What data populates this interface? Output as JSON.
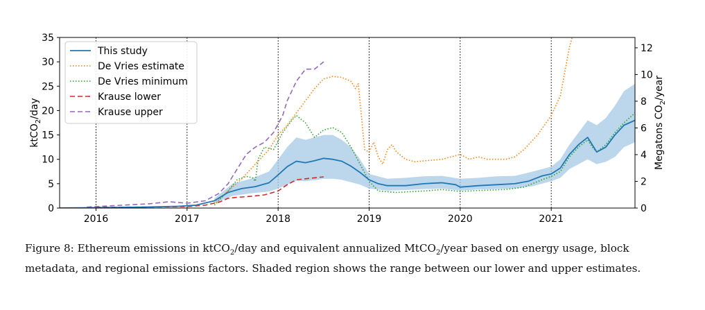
{
  "chart_data": {
    "type": "line",
    "title": "",
    "xlabel": "",
    "ylabel_left": "ktCO2/day",
    "ylabel_right": "Megatons CO2/year",
    "xlim": [
      2015.6,
      2021.92
    ],
    "ylim_left": [
      0,
      35
    ],
    "ylim_right": [
      0,
      12.775
    ],
    "x_ticks": [
      2016,
      2017,
      2018,
      2019,
      2020,
      2021
    ],
    "x_tick_labels": [
      "2016",
      "2017",
      "2018",
      "2019",
      "2020",
      "2021"
    ],
    "y_ticks_left": [
      0,
      5,
      10,
      15,
      20,
      25,
      30,
      35
    ],
    "y_ticks_right": [
      0,
      2,
      4,
      6,
      8,
      10,
      12
    ],
    "vertical_lines": [
      2016,
      2017,
      2018,
      2019,
      2020,
      2021
    ],
    "legend_position": "top-left",
    "series": [
      {
        "name": "This study",
        "style": "solid",
        "color": "#1f77b4",
        "points": [
          [
            2015.6,
            0.02
          ],
          [
            2016.0,
            0.08
          ],
          [
            2016.5,
            0.2
          ],
          [
            2016.9,
            0.35
          ],
          [
            2017.1,
            0.6
          ],
          [
            2017.3,
            1.5
          ],
          [
            2017.45,
            3.2
          ],
          [
            2017.6,
            4.0
          ],
          [
            2017.75,
            4.4
          ],
          [
            2017.9,
            5.2
          ],
          [
            2018.0,
            6.8
          ],
          [
            2018.1,
            8.5
          ],
          [
            2018.2,
            9.6
          ],
          [
            2018.3,
            9.3
          ],
          [
            2018.4,
            9.7
          ],
          [
            2018.5,
            10.2
          ],
          [
            2018.6,
            10.0
          ],
          [
            2018.7,
            9.6
          ],
          [
            2018.8,
            8.6
          ],
          [
            2018.9,
            7.3
          ],
          [
            2019.0,
            5.8
          ],
          [
            2019.1,
            5.0
          ],
          [
            2019.2,
            4.6
          ],
          [
            2019.4,
            4.6
          ],
          [
            2019.6,
            5.0
          ],
          [
            2019.8,
            5.2
          ],
          [
            2019.95,
            4.8
          ],
          [
            2020.0,
            4.3
          ],
          [
            2020.2,
            4.6
          ],
          [
            2020.4,
            4.8
          ],
          [
            2020.6,
            5.0
          ],
          [
            2020.75,
            5.5
          ],
          [
            2020.9,
            6.6
          ],
          [
            2021.0,
            7.0
          ],
          [
            2021.1,
            8.2
          ],
          [
            2021.2,
            11.0
          ],
          [
            2021.3,
            13.0
          ],
          [
            2021.4,
            14.5
          ],
          [
            2021.45,
            13.0
          ],
          [
            2021.5,
            11.5
          ],
          [
            2021.6,
            12.5
          ],
          [
            2021.7,
            15.0
          ],
          [
            2021.8,
            17.0
          ],
          [
            2021.92,
            18.0
          ]
        ]
      },
      {
        "name": "De Vries estimate",
        "style": "dotted",
        "color": "#ff7f0e",
        "points": [
          [
            2017.3,
            1.0
          ],
          [
            2017.45,
            3.5
          ],
          [
            2017.6,
            6.0
          ],
          [
            2017.75,
            9.0
          ],
          [
            2017.9,
            12.0
          ],
          [
            2018.0,
            15.0
          ],
          [
            2018.1,
            17.0
          ],
          [
            2018.2,
            19.5
          ],
          [
            2018.3,
            22.0
          ],
          [
            2018.4,
            24.5
          ],
          [
            2018.5,
            26.5
          ],
          [
            2018.6,
            27.0
          ],
          [
            2018.7,
            26.8
          ],
          [
            2018.8,
            26.0
          ],
          [
            2018.85,
            24.5
          ],
          [
            2018.88,
            25.5
          ],
          [
            2018.92,
            18.0
          ],
          [
            2018.95,
            12.0
          ],
          [
            2019.0,
            11.5
          ],
          [
            2019.05,
            13.5
          ],
          [
            2019.1,
            10.5
          ],
          [
            2019.15,
            9.0
          ],
          [
            2019.2,
            12.0
          ],
          [
            2019.25,
            13.0
          ],
          [
            2019.3,
            11.5
          ],
          [
            2019.4,
            10.0
          ],
          [
            2019.5,
            9.5
          ],
          [
            2019.8,
            10.0
          ],
          [
            2020.0,
            11.0
          ],
          [
            2020.1,
            10.0
          ],
          [
            2020.2,
            10.5
          ],
          [
            2020.3,
            10.0
          ],
          [
            2020.5,
            10.0
          ],
          [
            2020.6,
            10.5
          ],
          [
            2020.7,
            12.0
          ],
          [
            2020.85,
            15.0
          ],
          [
            2021.0,
            19.0
          ],
          [
            2021.1,
            23.0
          ],
          [
            2021.15,
            28.0
          ],
          [
            2021.2,
            33.0
          ],
          [
            2021.23,
            35.0
          ]
        ]
      },
      {
        "name": "De Vries minimum",
        "style": "dotted",
        "color": "#2ca02c",
        "points": [
          [
            2017.3,
            0.6
          ],
          [
            2017.45,
            3.5
          ],
          [
            2017.55,
            5.8
          ],
          [
            2017.65,
            6.5
          ],
          [
            2017.72,
            6.2
          ],
          [
            2017.75,
            5.5
          ],
          [
            2017.78,
            10.0
          ],
          [
            2017.85,
            12.5
          ],
          [
            2017.95,
            12.0
          ],
          [
            2018.05,
            15.5
          ],
          [
            2018.15,
            18.0
          ],
          [
            2018.2,
            19.0
          ],
          [
            2018.3,
            17.5
          ],
          [
            2018.4,
            14.5
          ],
          [
            2018.5,
            16.0
          ],
          [
            2018.6,
            16.5
          ],
          [
            2018.7,
            15.5
          ],
          [
            2018.8,
            12.5
          ],
          [
            2018.9,
            9.0
          ],
          [
            2019.0,
            5.5
          ],
          [
            2019.1,
            3.5
          ],
          [
            2019.3,
            3.2
          ],
          [
            2019.6,
            3.5
          ],
          [
            2019.8,
            3.8
          ],
          [
            2020.0,
            3.4
          ],
          [
            2020.2,
            3.6
          ],
          [
            2020.5,
            3.8
          ],
          [
            2020.7,
            4.3
          ],
          [
            2020.9,
            5.8
          ],
          [
            2021.0,
            6.5
          ],
          [
            2021.1,
            7.5
          ],
          [
            2021.2,
            10.5
          ],
          [
            2021.3,
            12.5
          ],
          [
            2021.4,
            14.0
          ],
          [
            2021.45,
            12.5
          ],
          [
            2021.5,
            11.5
          ],
          [
            2021.6,
            13.0
          ],
          [
            2021.7,
            15.5
          ],
          [
            2021.8,
            17.5
          ],
          [
            2021.92,
            19.5
          ]
        ]
      },
      {
        "name": "Krause lower",
        "style": "dashed",
        "color": "#d62728",
        "points": [
          [
            2016.0,
            0.15
          ],
          [
            2016.5,
            0.2
          ],
          [
            2017.0,
            0.3
          ],
          [
            2017.2,
            0.6
          ],
          [
            2017.35,
            1.2
          ],
          [
            2017.45,
            2.0
          ],
          [
            2017.55,
            2.2
          ],
          [
            2017.7,
            2.4
          ],
          [
            2017.85,
            2.7
          ],
          [
            2018.0,
            3.5
          ],
          [
            2018.1,
            4.8
          ],
          [
            2018.2,
            5.8
          ],
          [
            2018.3,
            6.0
          ],
          [
            2018.4,
            6.2
          ],
          [
            2018.5,
            6.4
          ]
        ]
      },
      {
        "name": "Krause upper",
        "style": "dashed",
        "color": "#9467bd",
        "points": [
          [
            2015.9,
            0.2
          ],
          [
            2016.3,
            0.6
          ],
          [
            2016.6,
            0.9
          ],
          [
            2016.8,
            1.3
          ],
          [
            2017.0,
            1.0
          ],
          [
            2017.2,
            1.5
          ],
          [
            2017.35,
            3.0
          ],
          [
            2017.45,
            5.0
          ],
          [
            2017.55,
            8.0
          ],
          [
            2017.65,
            11.0
          ],
          [
            2017.75,
            12.5
          ],
          [
            2017.85,
            13.5
          ],
          [
            2017.95,
            15.5
          ],
          [
            2018.05,
            19.0
          ],
          [
            2018.1,
            22.0
          ],
          [
            2018.2,
            26.0
          ],
          [
            2018.3,
            28.5
          ],
          [
            2018.4,
            28.5
          ],
          [
            2018.5,
            30.0
          ]
        ]
      }
    ],
    "band": {
      "color": "#a6c8e6",
      "x": [
        2017.3,
        2017.5,
        2017.7,
        2017.9,
        2018.0,
        2018.1,
        2018.2,
        2018.3,
        2018.4,
        2018.5,
        2018.6,
        2018.7,
        2018.8,
        2018.9,
        2019.0,
        2019.2,
        2019.4,
        2019.6,
        2019.8,
        2020.0,
        2020.2,
        2020.4,
        2020.6,
        2020.8,
        2021.0,
        2021.1,
        2021.2,
        2021.3,
        2021.4,
        2021.5,
        2021.6,
        2021.7,
        2021.8,
        2021.92
      ],
      "lower": [
        1.0,
        2.5,
        3.0,
        3.4,
        4.0,
        4.8,
        5.6,
        5.5,
        5.7,
        6.0,
        6.0,
        5.8,
        5.3,
        4.8,
        4.0,
        3.6,
        3.7,
        3.9,
        4.0,
        3.6,
        3.8,
        3.9,
        4.0,
        4.5,
        5.5,
        6.2,
        8.0,
        9.0,
        10.0,
        9.0,
        9.5,
        10.5,
        12.5,
        13.5
      ],
      "upper": [
        2.0,
        5.0,
        6.0,
        7.5,
        10.0,
        12.5,
        14.5,
        14.0,
        14.5,
        15.0,
        15.0,
        14.0,
        12.5,
        10.0,
        7.0,
        6.0,
        6.2,
        6.5,
        6.6,
        6.0,
        6.2,
        6.5,
        6.6,
        7.5,
        8.5,
        10.0,
        13.0,
        15.5,
        18.0,
        17.0,
        18.5,
        21.0,
        24.0,
        25.5
      ]
    }
  },
  "caption": "Figure 8: Ethereum emissions in ktCO2/day and equivalent annualized MtCO2/year based on energy usage, block metadata, and regional emissions factors. Shaded region shows the range between our lower and upper estimates."
}
